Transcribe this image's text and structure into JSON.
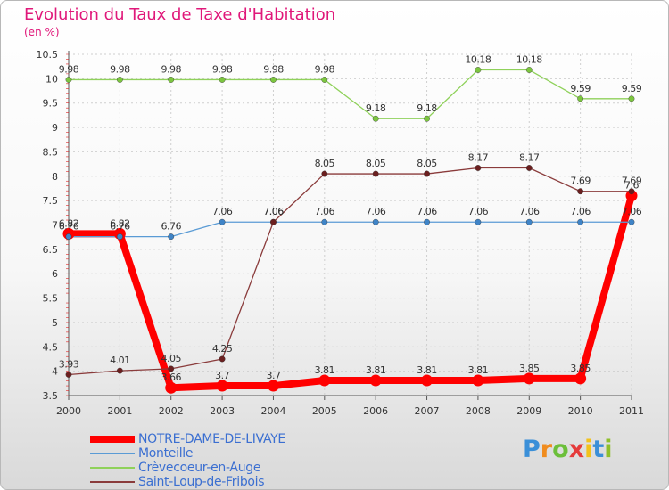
{
  "header": {
    "title": "Evolution du Taux de Taxe d'Habitation",
    "unit": "(en %)"
  },
  "logo": {
    "letters": [
      "P",
      "r",
      "o",
      "x",
      "i",
      "t",
      "i"
    ],
    "colors": [
      "#3a8fd8",
      "#f08c1e",
      "#6cbf3a",
      "#e53b3b",
      "#f2c21b",
      "#3a8fd8",
      "#8fbf2a"
    ]
  },
  "chart_data": {
    "type": "line",
    "x": [
      "2000",
      "2001",
      "2002",
      "2003",
      "2004",
      "2005",
      "2006",
      "2007",
      "2008",
      "2009",
      "2010",
      "2011"
    ],
    "ylim": [
      3.5,
      10.5
    ],
    "yticks": [
      "3.5",
      "4",
      "4.5",
      "5",
      "5.5",
      "6",
      "6.5",
      "7",
      "7.5",
      "8",
      "8.5",
      "9",
      "9.5",
      "10",
      "10.5"
    ],
    "grid": true,
    "legend_position": "bottom",
    "series": [
      {
        "name": "NOTRE-DAME-DE-LIVAYE",
        "color": "#ff0000",
        "marker": "#ff0000",
        "width": 8,
        "values": [
          6.82,
          6.82,
          3.66,
          3.7,
          3.7,
          3.81,
          3.81,
          3.81,
          3.81,
          3.85,
          3.85,
          7.6
        ],
        "labels": [
          "6.82",
          "6.82",
          "3.66",
          "3.7",
          "3.7",
          "3.81",
          "3.81",
          "3.81",
          "3.81",
          "3.85",
          "3.85",
          "7.6"
        ]
      },
      {
        "name": "Monteille",
        "color": "#5a9bd5",
        "marker": "#3f84c7",
        "width": 1.3,
        "values": [
          6.76,
          6.76,
          6.76,
          7.06,
          7.06,
          7.06,
          7.06,
          7.06,
          7.06,
          7.06,
          7.06,
          7.06
        ],
        "labels": [
          "6.76",
          "6.76",
          "6.76",
          "7.06",
          "7.06",
          "7.06",
          "7.06",
          "7.06",
          "7.06",
          "7.06",
          "7.06",
          "7.06"
        ]
      },
      {
        "name": "Crèvecoeur-en-Auge",
        "color": "#8fd15a",
        "marker": "#7cc63f",
        "width": 1.3,
        "values": [
          9.98,
          9.98,
          9.98,
          9.98,
          9.98,
          9.98,
          9.18,
          9.18,
          10.18,
          10.18,
          9.59,
          9.59
        ],
        "labels": [
          "9.98",
          "9.98",
          "9.98",
          "9.98",
          "9.98",
          "9.98",
          "9.18",
          "9.18",
          "10.18",
          "10.18",
          "9.59",
          "9.59"
        ]
      },
      {
        "name": "Saint-Loup-de-Fribois",
        "color": "#8a3b3b",
        "marker": "#6b1f1f",
        "width": 1.3,
        "values": [
          3.93,
          4.01,
          4.05,
          4.25,
          7.06,
          8.05,
          8.05,
          8.05,
          8.17,
          8.17,
          7.69,
          7.69
        ],
        "labels": [
          "3.93",
          "4.01",
          "4.05",
          "4.25",
          "7.06",
          "8.05",
          "8.05",
          "8.05",
          "8.17",
          "8.17",
          "7.69",
          "7.69"
        ]
      }
    ]
  }
}
